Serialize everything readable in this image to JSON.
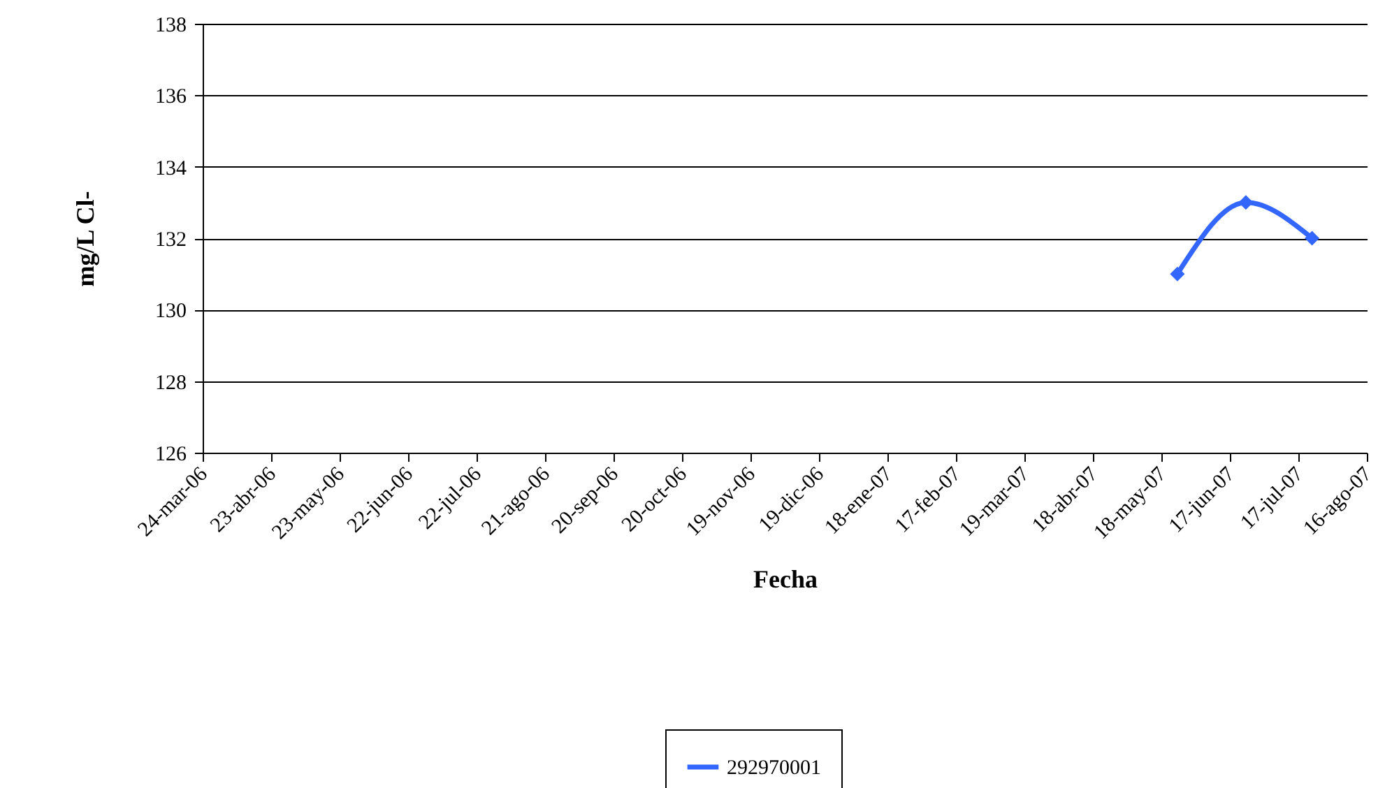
{
  "chart_data": {
    "type": "line",
    "xlabel": "Fecha",
    "ylabel": "mg/L Cl-",
    "x": [
      "2007-05-25",
      "2007-06-24",
      "2007-07-23"
    ],
    "series": [
      {
        "name": "292970001",
        "color": "#3366ff",
        "values": [
          131,
          133,
          132
        ]
      }
    ],
    "xlim": [
      "2006-03-24",
      "2007-08-16"
    ],
    "xticks": [
      {
        "value": "2006-03-24",
        "label": "24-mar-06"
      },
      {
        "value": "2006-04-23",
        "label": "23-abr-06"
      },
      {
        "value": "2006-05-23",
        "label": "23-may-06"
      },
      {
        "value": "2006-06-22",
        "label": "22-jun-06"
      },
      {
        "value": "2006-07-22",
        "label": "22-jul-06"
      },
      {
        "value": "2006-08-21",
        "label": "21-ago-06"
      },
      {
        "value": "2006-09-20",
        "label": "20-sep-06"
      },
      {
        "value": "2006-10-20",
        "label": "20-oct-06"
      },
      {
        "value": "2006-11-19",
        "label": "19-nov-06"
      },
      {
        "value": "2006-12-19",
        "label": "19-dic-06"
      },
      {
        "value": "2007-01-18",
        "label": "18-ene-07"
      },
      {
        "value": "2007-02-17",
        "label": "17-feb-07"
      },
      {
        "value": "2007-03-19",
        "label": "19-mar-07"
      },
      {
        "value": "2007-04-18",
        "label": "18-abr-07"
      },
      {
        "value": "2007-05-18",
        "label": "18-may-07"
      },
      {
        "value": "2007-06-17",
        "label": "17-jun-07"
      },
      {
        "value": "2007-07-17",
        "label": "17-jul-07"
      },
      {
        "value": "2007-08-16",
        "label": "16-ago-07"
      }
    ],
    "ylim": [
      126,
      138
    ],
    "yticks": [
      126,
      128,
      130,
      132,
      134,
      136,
      138
    ],
    "grid": "y",
    "legend": "bottom",
    "marker": "diamond",
    "line_style": "solid"
  }
}
